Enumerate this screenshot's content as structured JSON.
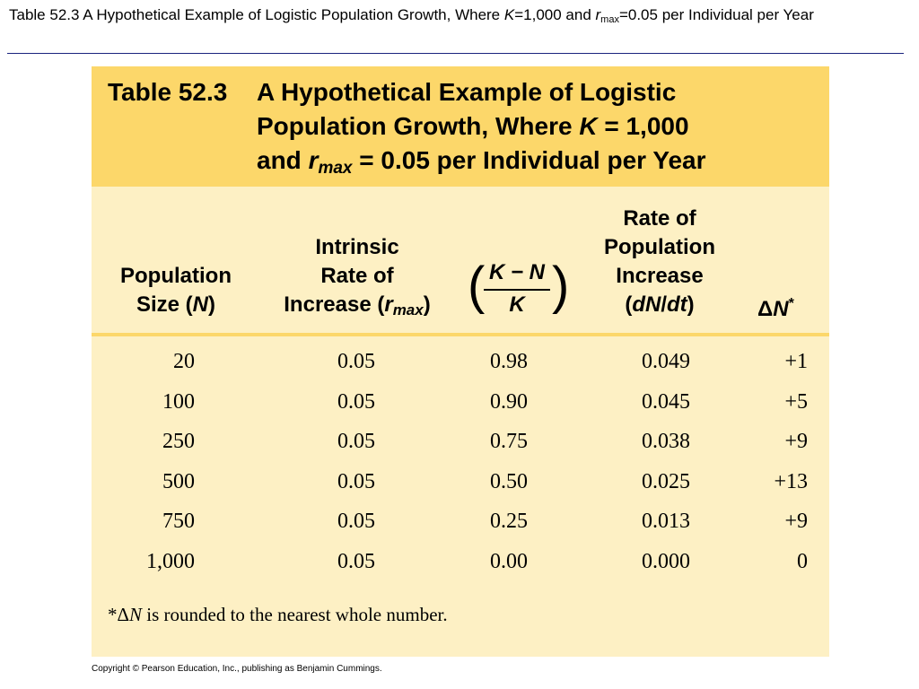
{
  "slide": {
    "title_a": "Table 52.3  A Hypothetical Example of Logistic Population Growth, Where ",
    "title_k": "K",
    "title_b": "=1,000 and ",
    "title_r": "r",
    "title_sub": "max",
    "title_c": "=0.05 per Individual per Year"
  },
  "table": {
    "number": "Table 52.3",
    "caption_line1": "A Hypothetical Example of Logistic",
    "caption_line2a": "Population Growth, Where ",
    "caption_line2k": "K",
    "caption_line2b": " = 1,000",
    "caption_line3a": "and ",
    "caption_line3r": "r",
    "caption_line3sub": "max",
    "caption_line3b": " = 0.05 per Individual per Year",
    "headers": {
      "pop_line1": "Population",
      "pop_line2a": "Size (",
      "pop_line2n": "N",
      "pop_line2b": ")",
      "intr_line1": "Intrinsic",
      "intr_line2": "Rate of",
      "intr_line3a": "Increase (",
      "intr_line3r": "r",
      "intr_line3sub": "max",
      "intr_line3b": ")",
      "frac_top": "K − N",
      "frac_bottom": "K",
      "rate_line1": "Rate of",
      "rate_line2": "Population",
      "rate_line3": "Increase",
      "rate_line4a": "(",
      "rate_line4i": "dN",
      "rate_line4b": "/",
      "rate_line4c": "dt",
      "rate_line4d": ")",
      "delta": "Δ",
      "delta_n": "N",
      "delta_star": "*"
    },
    "rows": [
      {
        "n": "20",
        "r": "0.05",
        "f": "0.98",
        "rate": "0.049",
        "dn": "+1"
      },
      {
        "n": "100",
        "r": "0.05",
        "f": "0.90",
        "rate": "0.045",
        "dn": "+5"
      },
      {
        "n": "250",
        "r": "0.05",
        "f": "0.75",
        "rate": "0.038",
        "dn": "+9"
      },
      {
        "n": "500",
        "r": "0.05",
        "f": "0.50",
        "rate": "0.025",
        "dn": "+13"
      },
      {
        "n": "750",
        "r": "0.05",
        "f": "0.25",
        "rate": "0.013",
        "dn": "+9"
      },
      {
        "n": "1,000",
        "r": "0.05",
        "f": "0.00",
        "rate": "0.000",
        "dn": "0"
      }
    ],
    "footnote_a": "*Δ",
    "footnote_n": "N",
    "footnote_b": " is rounded to the nearest whole number."
  },
  "copyright": "Copyright © Pearson Education, Inc., publishing as Benjamin Cummings.",
  "colors": {
    "header_band": "#fcd76a",
    "table_body": "#fdf0c4",
    "title_rule": "#1a237e"
  }
}
